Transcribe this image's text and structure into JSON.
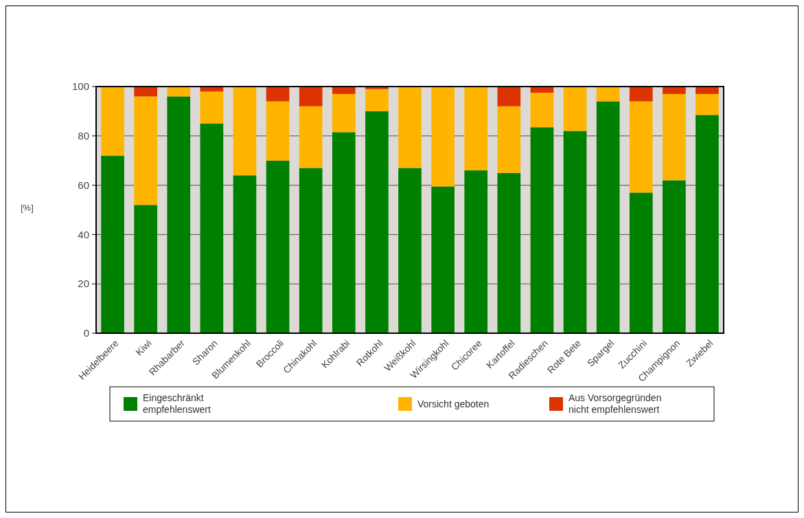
{
  "chart_data": {
    "type": "bar",
    "stacked": true,
    "ylabel": "[%]",
    "ylim": [
      0,
      100
    ],
    "yticks": [
      0,
      20,
      40,
      60,
      80,
      100
    ],
    "grid": "y",
    "legend": "bottom",
    "categories": [
      "Heidelbeere",
      "Kiwi",
      "Rhabarber",
      "Sharon",
      "Blumenkohl",
      "Broccoli",
      "Chinakohl",
      "Kohlrabi",
      "Rotkohl",
      "Weißkohl",
      "Wirsingkohl",
      "Chicoree",
      "Kartoffel",
      "Radieschen",
      "Rote Bete",
      "Spargel",
      "Zucchini",
      "Champignon",
      "Zwiebel"
    ],
    "series": [
      {
        "name": "Eingeschränkt empfehlenswert",
        "color": "#008000",
        "values": [
          72,
          52,
          96,
          85,
          64,
          70,
          67,
          81.5,
          90,
          67,
          59.5,
          66,
          65,
          83.5,
          82,
          94,
          57,
          62,
          88.5
        ]
      },
      {
        "name": "Vorsicht geboten",
        "color": "#ffb400",
        "values": [
          28,
          44,
          4,
          13,
          36,
          24,
          25,
          15.5,
          9,
          33,
          40.5,
          34,
          27,
          14,
          18,
          6,
          37,
          35,
          8.5
        ]
      },
      {
        "name": "Aus Vorsorgegründen nicht empfehlenswert",
        "color": "#dd3300",
        "values": [
          0,
          4,
          0,
          2,
          0,
          6,
          8,
          3,
          1,
          0,
          0,
          0,
          8,
          2.5,
          0,
          0,
          6,
          3,
          3
        ]
      }
    ]
  }
}
